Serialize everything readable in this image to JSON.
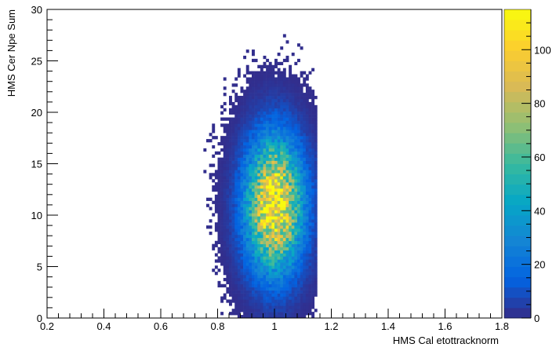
{
  "chart_data": {
    "type": "heatmap",
    "title": "",
    "xlabel": "HMS Cal etottracknorm",
    "ylabel": "HMS Cer Npe Sum",
    "xlim": [
      0.2,
      1.8
    ],
    "ylim": [
      0,
      30
    ],
    "x_ticks": [
      0.2,
      0.4,
      0.6,
      0.8,
      1.0,
      1.2,
      1.4,
      1.6,
      1.8
    ],
    "x_tick_labels": [
      "0.2",
      "0.4",
      "0.6",
      "0.8",
      "1",
      "1.2",
      "1.4",
      "1.6",
      "1.8"
    ],
    "y_ticks": [
      0,
      5,
      10,
      15,
      20,
      25,
      30
    ],
    "y_tick_labels": [
      "0",
      "5",
      "10",
      "15",
      "20",
      "25",
      "30"
    ],
    "colorbar": {
      "min": 0,
      "max": 115,
      "ticks": [
        0,
        20,
        40,
        60,
        80,
        100
      ],
      "tick_labels": [
        "0",
        "20",
        "40",
        "60",
        "80",
        "100"
      ],
      "palette": [
        "#352a87",
        "#0363e1",
        "#1485d4",
        "#06a7c6",
        "#38b99e",
        "#92bf73",
        "#d9ba56",
        "#fcce2e",
        "#f9fb0e"
      ]
    },
    "distribution": {
      "description_free": true,
      "peak_x": 1.0,
      "peak_y": 11.0,
      "sigma_x": 0.065,
      "sigma_y": 4.2,
      "peak_count": 112,
      "bin_width_x": 0.01,
      "bin_width_y": 0.3,
      "x_extent": [
        0.7,
        1.15
      ],
      "y_extent": [
        0,
        30
      ]
    },
    "grid": false,
    "legend": "none"
  }
}
